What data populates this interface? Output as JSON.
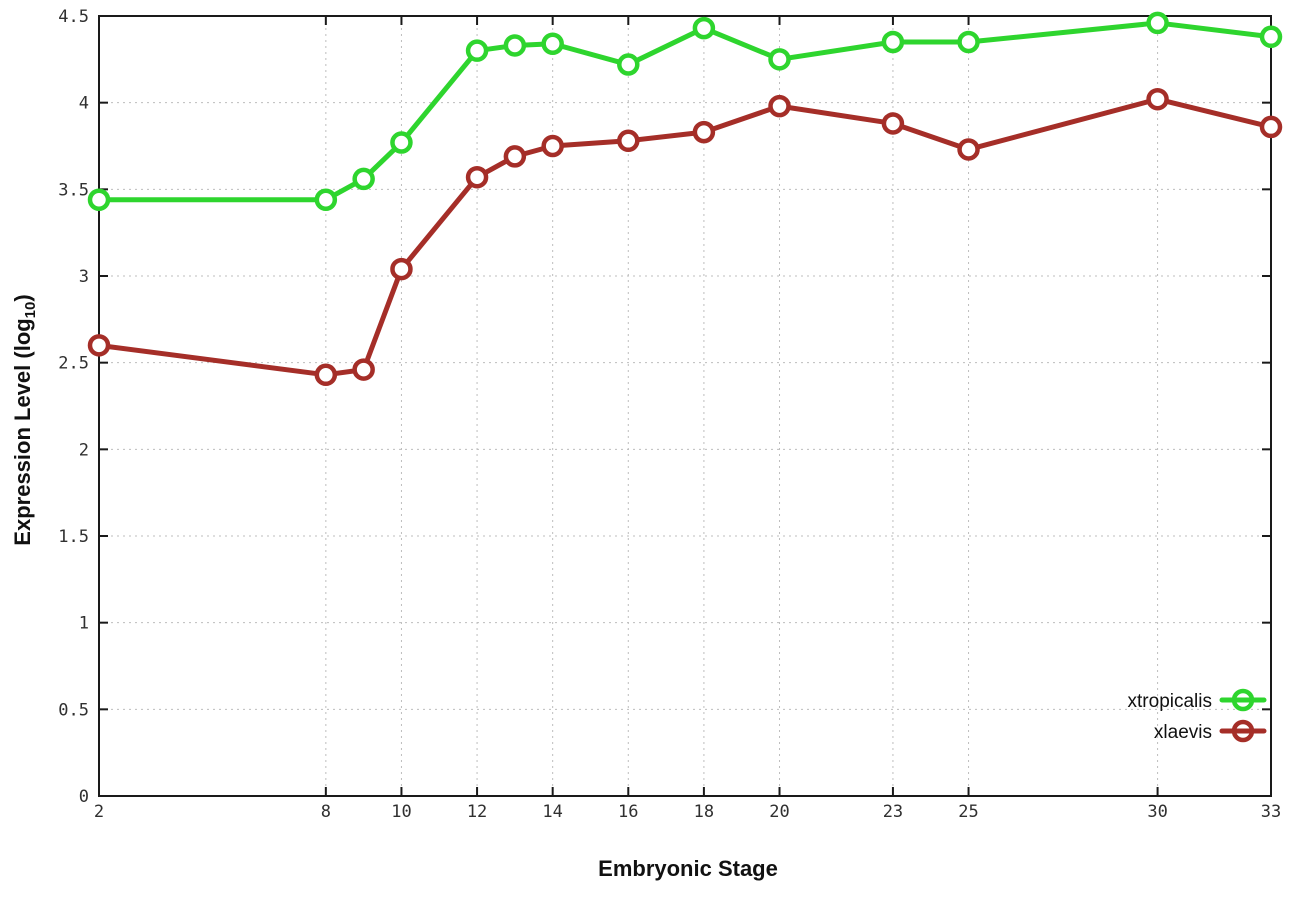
{
  "chart_data": {
    "type": "line",
    "title": "",
    "xlabel": "Embryonic Stage",
    "ylabel": {
      "main": "Expression Level (log",
      "sub": "10",
      "suffix": ")"
    },
    "x_tick_values": [
      2,
      8,
      10,
      12,
      14,
      16,
      18,
      20,
      23,
      25,
      30,
      33
    ],
    "y_tick_values": [
      0,
      0.5,
      1,
      1.5,
      2,
      2.5,
      3,
      3.5,
      4,
      4.5
    ],
    "xlim": [
      2,
      33
    ],
    "ylim": [
      0,
      4.5
    ],
    "grid": true,
    "legend_position": "bottom-right-inside",
    "x": [
      2,
      8,
      9,
      10,
      12,
      13,
      14,
      16,
      18,
      20,
      23,
      25,
      30,
      33
    ],
    "series": [
      {
        "name": "xtropicalis",
        "color": "#2ed52e",
        "values": [
          3.44,
          3.44,
          3.56,
          3.77,
          4.3,
          4.33,
          4.34,
          4.22,
          4.43,
          4.25,
          4.35,
          4.35,
          4.46,
          4.38
        ]
      },
      {
        "name": "xlaevis",
        "color": "#a52e28",
        "values": [
          2.6,
          2.43,
          2.46,
          3.04,
          3.57,
          3.69,
          3.75,
          3.78,
          3.83,
          3.98,
          3.88,
          3.73,
          4.02,
          3.86
        ]
      }
    ],
    "colors": {
      "axis": "#1a1a1a",
      "grid": "#bdbdbd",
      "marker_fill": "#ffffff"
    }
  }
}
